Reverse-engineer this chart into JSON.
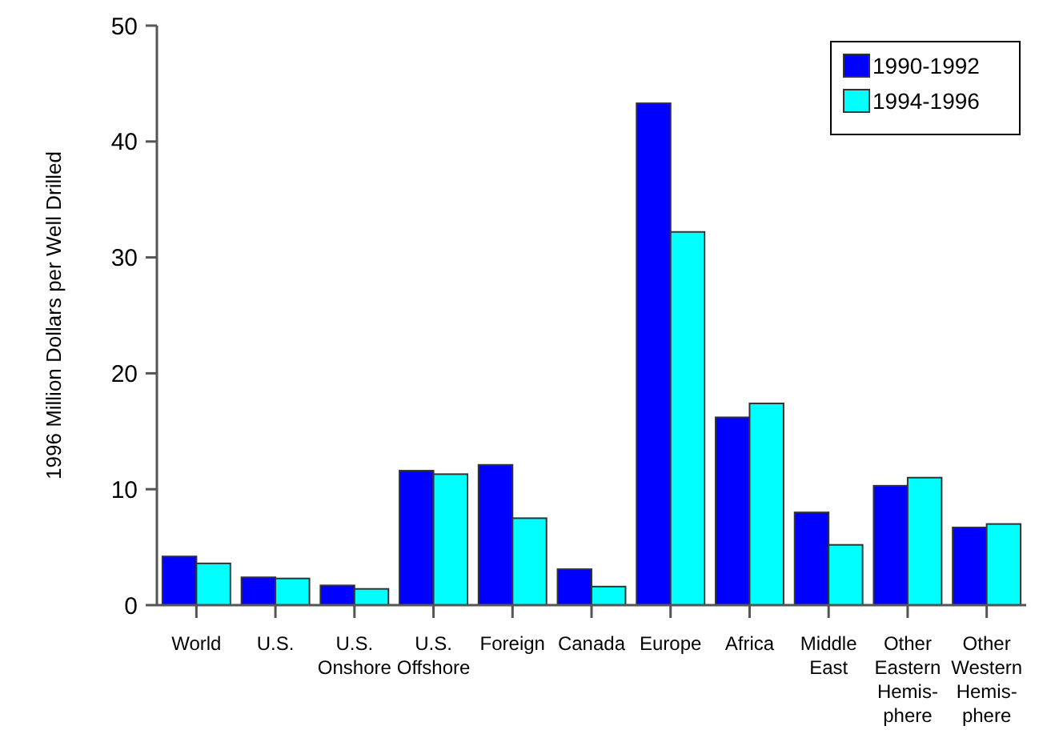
{
  "chart_data": {
    "type": "bar",
    "ylabel": "1996 Million Dollars per Well Drilled",
    "categories": [
      "World",
      "U.S.",
      "U.S.\nOnshore",
      "U.S.\nOffshore",
      "Foreign",
      "Canada",
      "Europe",
      "Africa",
      "Middle\nEast",
      "Other\nEastern\nHemis-\nphere",
      "Other\nWestern\nHemis-\nphere"
    ],
    "series": [
      {
        "name": "1990-1992",
        "color": "#0000ff",
        "values": [
          4.2,
          2.4,
          1.7,
          11.6,
          12.1,
          3.1,
          43.3,
          16.2,
          8.0,
          10.3,
          6.7
        ]
      },
      {
        "name": "1994-1996",
        "color": "#00ffff",
        "values": [
          3.6,
          2.3,
          1.4,
          11.3,
          7.5,
          1.6,
          32.2,
          17.4,
          5.2,
          11.0,
          7.0
        ]
      }
    ],
    "ylim": [
      0,
      50
    ],
    "yticks": [
      0,
      10,
      20,
      30,
      40,
      50
    ],
    "grid": false,
    "legend": "top right"
  }
}
